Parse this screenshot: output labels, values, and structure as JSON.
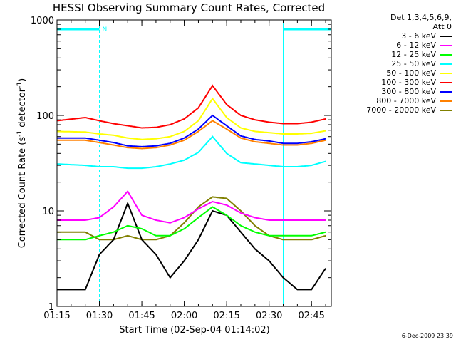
{
  "chart_data": {
    "type": "line",
    "title": "HESSI Observing Summary Count Rates, Corrected",
    "xlabel": "Start Time (02-Sep-04 01:14:02)",
    "ylabel_main": "Corrected Count Rate (s",
    "ylabel_sup1": "-1",
    "ylabel_mid": " detector",
    "ylabel_sup2": "-1",
    "ylabel_end": ")",
    "y_scale": "log",
    "ylim": [
      1,
      1000
    ],
    "xlim": [
      "01:15",
      "02:52"
    ],
    "x_ticks": [
      "01:15",
      "01:30",
      "01:45",
      "02:00",
      "02:15",
      "02:30",
      "02:45"
    ],
    "y_ticks": [
      "1",
      "10",
      "100",
      "1000"
    ],
    "date_stamp": "6-Dec-2009 23:39",
    "legend_header_1": "Det 1,3,4,5,6,9,",
    "legend_header_2": "Att 0",
    "night_marker": "N",
    "night_intervals": [
      [
        "01:14",
        "01:30"
      ],
      [
        "02:35",
        "02:52"
      ]
    ],
    "series": [
      {
        "name": "3 - 6 keV",
        "color": "#000000",
        "x": [
          "01:15",
          "01:25",
          "01:30",
          "01:35",
          "01:40",
          "01:45",
          "01:50",
          "01:55",
          "02:00",
          "02:05",
          "02:10",
          "02:15",
          "02:20",
          "02:25",
          "02:30",
          "02:35",
          "02:40",
          "02:45",
          "02:50"
        ],
        "y": [
          1.5,
          1.5,
          3.5,
          5,
          12,
          5,
          3.5,
          2,
          3,
          5,
          10,
          9,
          6,
          4,
          3,
          2,
          1.5,
          1.5,
          2.5
        ]
      },
      {
        "name": "6 - 12 keV",
        "color": "#ff00ff",
        "x": [
          "01:15",
          "01:25",
          "01:30",
          "01:35",
          "01:40",
          "01:45",
          "01:50",
          "01:55",
          "02:00",
          "02:05",
          "02:10",
          "02:15",
          "02:20",
          "02:25",
          "02:30",
          "02:35",
          "02:40",
          "02:45",
          "02:50"
        ],
        "y": [
          8,
          8,
          8.5,
          11,
          16,
          9,
          8,
          7.5,
          8.5,
          10.5,
          12.5,
          11.5,
          9.5,
          8.5,
          8,
          8,
          8,
          8,
          8
        ]
      },
      {
        "name": "12 - 25 keV",
        "color": "#00ff00",
        "x": [
          "01:15",
          "01:25",
          "01:30",
          "01:35",
          "01:40",
          "01:45",
          "01:50",
          "01:55",
          "02:00",
          "02:05",
          "02:10",
          "02:15",
          "02:20",
          "02:25",
          "02:30",
          "02:35",
          "02:40",
          "02:45",
          "02:50"
        ],
        "y": [
          5,
          5,
          5.5,
          6,
          7,
          6.5,
          5.5,
          5.5,
          6.5,
          8.5,
          11,
          9,
          7,
          6,
          5.5,
          5.5,
          5.5,
          5.5,
          6
        ]
      },
      {
        "name": "25 - 50 keV",
        "color": "#00ffff",
        "x": [
          "01:15",
          "01:25",
          "01:30",
          "01:35",
          "01:40",
          "01:45",
          "01:50",
          "01:55",
          "02:00",
          "02:05",
          "02:10",
          "02:15",
          "02:20",
          "02:25",
          "02:30",
          "02:35",
          "02:40",
          "02:45",
          "02:50"
        ],
        "y": [
          31,
          30,
          29,
          29,
          28,
          28,
          29,
          31,
          34,
          41,
          60,
          40,
          32,
          31,
          30,
          29,
          29,
          30,
          33
        ]
      },
      {
        "name": "50 - 100 keV",
        "color": "#ffff00",
        "x": [
          "01:15",
          "01:25",
          "01:30",
          "01:35",
          "01:40",
          "01:45",
          "01:50",
          "01:55",
          "02:00",
          "02:05",
          "02:10",
          "02:15",
          "02:20",
          "02:25",
          "02:30",
          "02:35",
          "02:40",
          "02:45",
          "02:50"
        ],
        "y": [
          68,
          67,
          64,
          62,
          58,
          56,
          57,
          60,
          68,
          88,
          150,
          95,
          74,
          68,
          66,
          64,
          64,
          65,
          69
        ]
      },
      {
        "name": "100 - 300 keV",
        "color": "#ff0000",
        "x": [
          "01:15",
          "01:25",
          "01:30",
          "01:35",
          "01:40",
          "01:45",
          "01:50",
          "01:55",
          "02:00",
          "02:05",
          "02:10",
          "02:15",
          "02:20",
          "02:25",
          "02:30",
          "02:35",
          "02:40",
          "02:45",
          "02:50"
        ],
        "y": [
          88,
          95,
          88,
          82,
          78,
          74,
          75,
          80,
          92,
          120,
          205,
          130,
          100,
          90,
          85,
          82,
          82,
          85,
          92
        ]
      },
      {
        "name": "300 - 800 keV",
        "color": "#0000ff",
        "x": [
          "01:15",
          "01:25",
          "01:30",
          "01:35",
          "01:40",
          "01:45",
          "01:50",
          "01:55",
          "02:00",
          "02:05",
          "02:10",
          "02:15",
          "02:20",
          "02:25",
          "02:30",
          "02:35",
          "02:40",
          "02:45",
          "02:50"
        ],
        "y": [
          58,
          58,
          55,
          52,
          48,
          47,
          48,
          51,
          58,
          72,
          100,
          78,
          61,
          56,
          54,
          51,
          51,
          53,
          57
        ]
      },
      {
        "name": "800 - 7000 keV",
        "color": "#ff8000",
        "x": [
          "01:15",
          "01:25",
          "01:30",
          "01:35",
          "01:40",
          "01:45",
          "01:50",
          "01:55",
          "02:00",
          "02:05",
          "02:10",
          "02:15",
          "02:20",
          "02:25",
          "02:30",
          "02:35",
          "02:40",
          "02:45",
          "02:50"
        ],
        "y": [
          55,
          55,
          52,
          49,
          46,
          45,
          46,
          49,
          55,
          68,
          88,
          72,
          58,
          53,
          51,
          49,
          49,
          51,
          55
        ]
      },
      {
        "name": "7000 - 20000 keV",
        "color": "#808000",
        "x": [
          "01:15",
          "01:25",
          "01:30",
          "01:35",
          "01:40",
          "01:45",
          "01:50",
          "01:55",
          "02:00",
          "02:05",
          "02:10",
          "02:15",
          "02:20",
          "02:25",
          "02:30",
          "02:35",
          "02:40",
          "02:45",
          "02:50"
        ],
        "y": [
          6,
          6,
          5,
          5,
          5.5,
          5,
          5,
          5.5,
          7.5,
          11,
          14,
          13.5,
          10,
          7,
          5.5,
          5,
          5,
          5,
          5.5
        ]
      }
    ]
  }
}
